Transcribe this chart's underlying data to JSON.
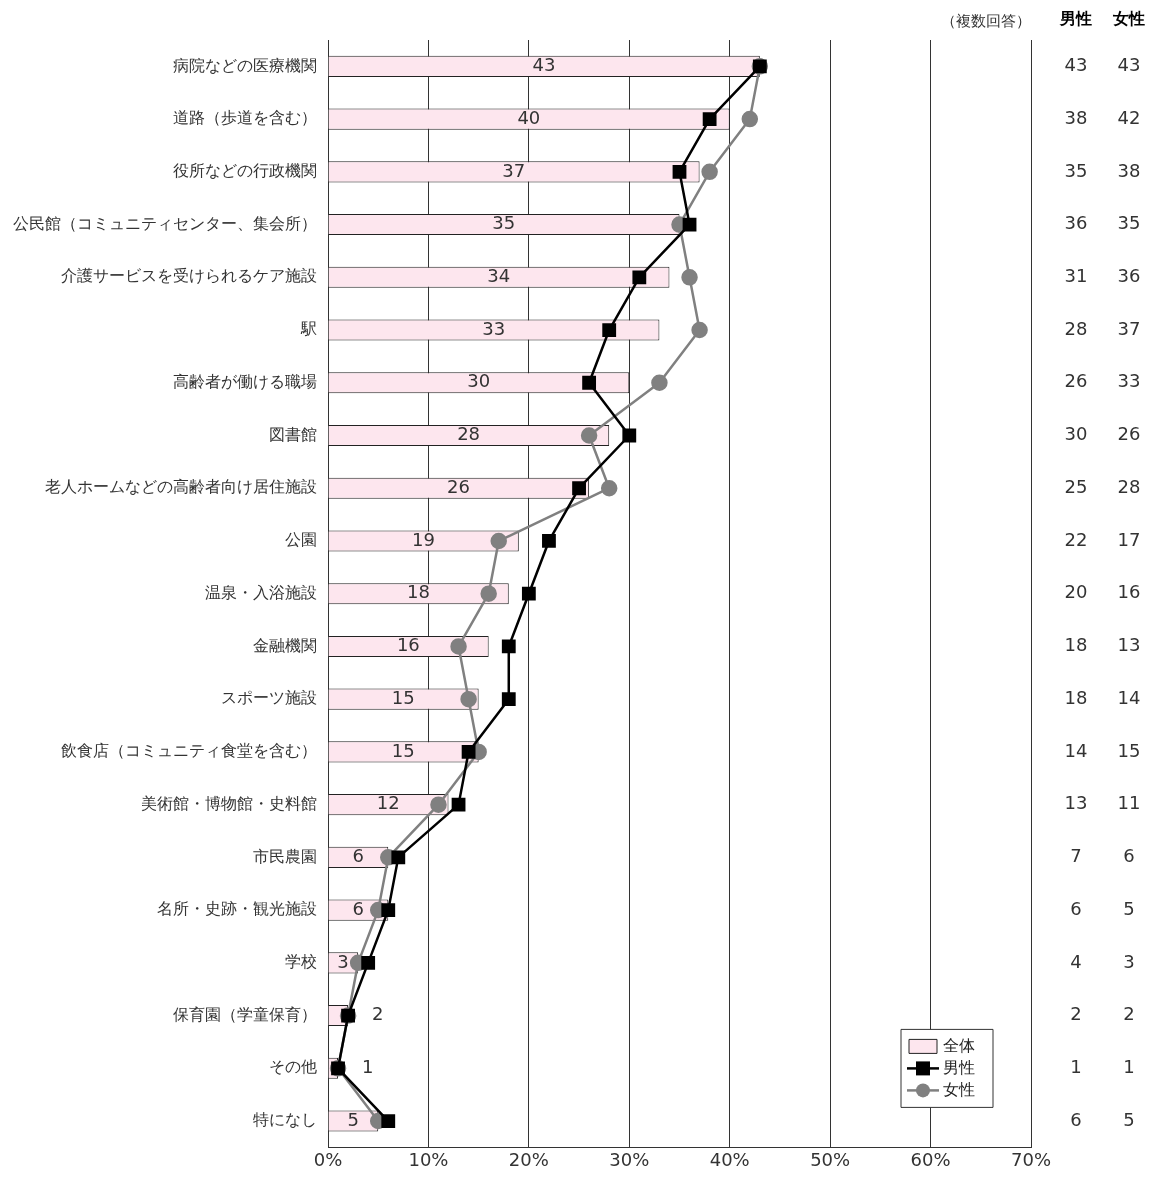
{
  "chart_data": {
    "type": "bar",
    "orientation": "horizontal",
    "categories": [
      "病院などの医療機関",
      "道路（歩道を含む）",
      "役所などの行政機関",
      "公民館（コミュニティセンター、集会所）",
      "介護サービスを受けられるケア施設",
      "駅",
      "高齢者が働ける職場",
      "図書館",
      "老人ホームなどの高齢者向け居住施設",
      "公園",
      "温泉・入浴施設",
      "金融機関",
      "スポーツ施設",
      "飲食店（コミュニティ食堂を含む）",
      "美術館・博物館・史料館",
      "市民農園",
      "名所・史跡・観光施設",
      "学校",
      "保育園（学童保育）",
      "その他",
      "特になし"
    ],
    "series": [
      {
        "name": "全体",
        "color": "#fde6ee",
        "values": [
          43,
          40,
          37,
          35,
          34,
          33,
          30,
          28,
          26,
          19,
          18,
          16,
          15,
          15,
          12,
          6,
          6,
          3,
          2,
          1,
          5
        ]
      },
      {
        "name": "男性",
        "type": "line",
        "color": "#000000",
        "marker": "square",
        "values": [
          43,
          38,
          35,
          36,
          31,
          28,
          26,
          30,
          25,
          22,
          20,
          18,
          18,
          14,
          13,
          7,
          6,
          4,
          2,
          1,
          6
        ]
      },
      {
        "name": "女性",
        "type": "line",
        "color": "#808080",
        "marker": "circle",
        "values": [
          43,
          42,
          38,
          35,
          36,
          37,
          33,
          26,
          28,
          17,
          16,
          13,
          14,
          15,
          11,
          6,
          5,
          3,
          2,
          1,
          5
        ]
      }
    ],
    "xlim": [
      0,
      70
    ],
    "xticks": [
      {
        "value": 0,
        "label": "0%"
      },
      {
        "value": 10,
        "label": "10%"
      },
      {
        "value": 20,
        "label": "20%"
      },
      {
        "value": 30,
        "label": "30%"
      },
      {
        "value": 40,
        "label": "40%"
      },
      {
        "value": 50,
        "label": "50%"
      },
      {
        "value": 60,
        "label": "60%"
      },
      {
        "value": 70,
        "label": "70%"
      }
    ],
    "grid": "x",
    "legend": "bottom right",
    "data_labels": true,
    "annotations": [
      "（複数回答）"
    ]
  }
}
